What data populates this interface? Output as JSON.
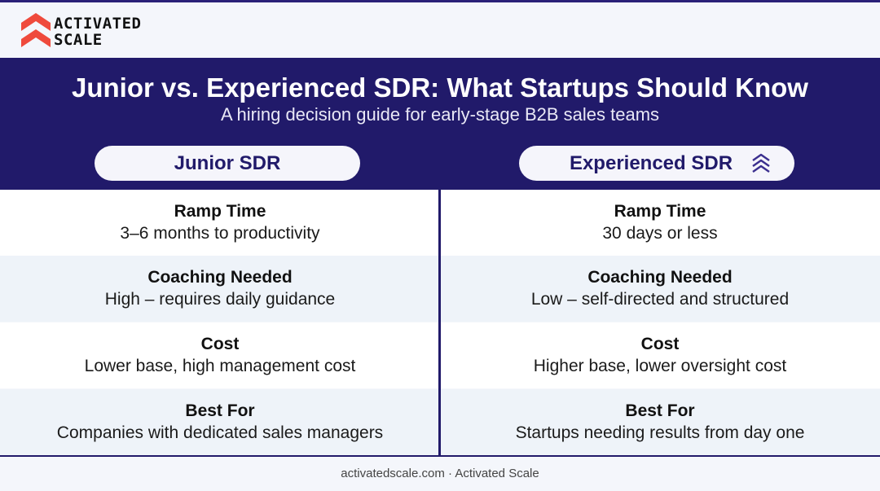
{
  "brand": {
    "line1": "ACTIVATED",
    "line2": "SCALE",
    "logo_icon": "stacked-chevrons-icon",
    "accent_color": "#ef4a3c"
  },
  "header": {
    "title": "Junior vs. Experienced SDR: What Startups Should Know",
    "subtitle": "A hiring decision guide for early-stage B2B sales teams",
    "background_color": "#211a6a"
  },
  "columns": [
    {
      "label": "Junior SDR"
    },
    {
      "label": "Experienced SDR",
      "icon": "chevrons-up-icon"
    }
  ],
  "rows": [
    {
      "title": "Ramp Time",
      "junior": "3–6 months to productivity",
      "experienced": "30 days or less"
    },
    {
      "title": "Coaching Needed",
      "junior": "High – requires daily guidance",
      "experienced": "Low – self-directed and structured"
    },
    {
      "title": "Cost",
      "junior": "Lower base, high management cost",
      "experienced": "Higher base, lower oversight cost"
    },
    {
      "title": "Best For",
      "junior": "Companies with dedicated sales managers",
      "experienced": "Startups needing results from day one"
    }
  ],
  "footer": {
    "text": "activatedscale.com · Activated Scale"
  }
}
